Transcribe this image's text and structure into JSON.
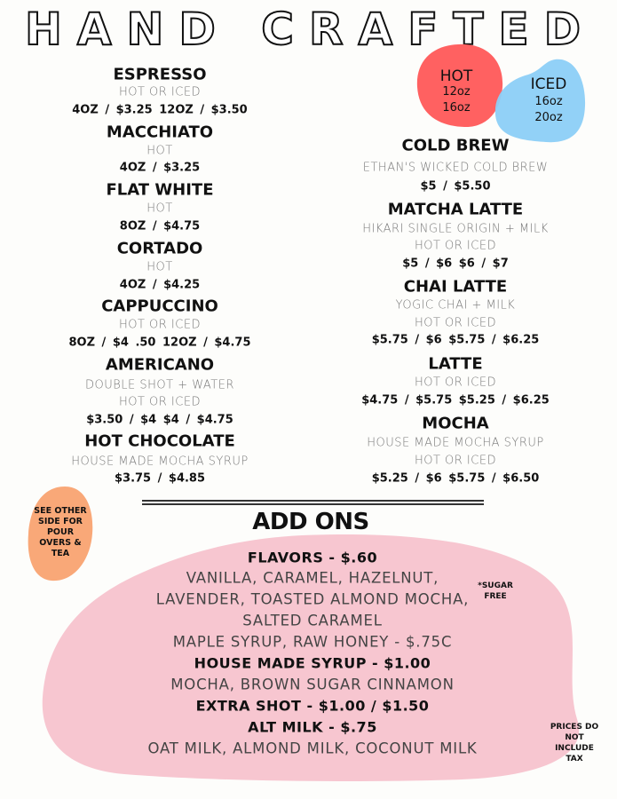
{
  "title": "HAND CRAFTED",
  "size_badges": {
    "hot": {
      "label": "HOT",
      "sizes": [
        "12oz",
        "16oz"
      ],
      "color": "#ff6161"
    },
    "iced": {
      "label": "ICED",
      "sizes": [
        "16oz",
        "20oz"
      ],
      "color": "#8ccff7"
    }
  },
  "left_menu": [
    {
      "name": "ESPRESSO",
      "desc": [
        "HOT OR ICED"
      ],
      "price": "4OZ / $3.25    12OZ / $3.50"
    },
    {
      "name": "MACCHIATO",
      "desc": [
        "HOT"
      ],
      "price": "4OZ / $3.25"
    },
    {
      "name": "FLAT WHITE",
      "desc": [
        "HOT"
      ],
      "price": "8OZ / $4.75"
    },
    {
      "name": "CORTADO",
      "desc": [
        "HOT"
      ],
      "price": "4OZ / $4.25"
    },
    {
      "name": "CAPPUCCINO",
      "desc": [
        "HOT OR ICED"
      ],
      "price": "8OZ / $4 .50    12OZ / $4.75"
    },
    {
      "name": "AMERICANO",
      "desc": [
        "DOUBLE SHOT + WATER",
        "HOT OR ICED"
      ],
      "price": "$3.50 / $4    $4 / $4.75"
    },
    {
      "name": "HOT CHOCOLATE",
      "desc": [
        "HOUSE MADE MOCHA SYRUP"
      ],
      "price": "$3.75  /  $4.85"
    }
  ],
  "right_menu": [
    {
      "name": "COLD BREW",
      "desc": [
        "ETHAN'S WICKED COLD BREW"
      ],
      "price": "$5  /  $5.50"
    },
    {
      "name": "MATCHA LATTE",
      "desc": [
        "HIKARI SINGLE ORIGIN + MILK",
        "HOT OR ICED"
      ],
      "price": "$5 / $6    $6 / $7"
    },
    {
      "name": "CHAI LATTE",
      "desc": [
        "YOGIC CHAI + MILK",
        "HOT OR ICED"
      ],
      "price": "$5.75 / $6    $5.75 / $6.25"
    },
    {
      "name": "LATTE",
      "desc": [
        "HOT OR ICED"
      ],
      "price": "$4.75 / $5.75    $5.25 / $6.25"
    },
    {
      "name": "MOCHA",
      "desc": [
        "HOUSE MADE MOCHA SYRUP",
        "HOT OR ICED"
      ],
      "price": "$5.25 / $6    $5.75 / $6.50"
    }
  ],
  "see_other_side": "SEE OTHER SIDE FOR POUR OVERS & TEA",
  "add_ons": {
    "heading": "ADD ONS",
    "lines": [
      {
        "text": "FLAVORS - $.60",
        "bold": true
      },
      {
        "text": "VANILLA, CARAMEL, HAZELNUT,",
        "bold": false
      },
      {
        "text": "LAVENDER, TOASTED ALMOND MOCHA,",
        "bold": false
      },
      {
        "text": "SALTED CARAMEL",
        "bold": false
      },
      {
        "text": "MAPLE SYRUP, RAW HONEY - $.75C",
        "bold": false
      },
      {
        "text": "HOUSE MADE SYRUP - $1.00",
        "bold": true
      },
      {
        "text": "MOCHA, BROWN SUGAR CINNAMON",
        "bold": false
      },
      {
        "text": "EXTRA SHOT - $1.00 / $1.50",
        "bold": true
      },
      {
        "text": "ALT MILK - $.75",
        "bold": true
      },
      {
        "text": "OAT MILK, ALMOND MILK, COCONUT MILK",
        "bold": false
      }
    ],
    "sugar_free_note": "*SUGAR FREE",
    "colors": {
      "pink": "#f7c6d0",
      "peach": "#f9a878"
    }
  },
  "tax_note": "PRICES DO NOT INCLUDE TAX"
}
